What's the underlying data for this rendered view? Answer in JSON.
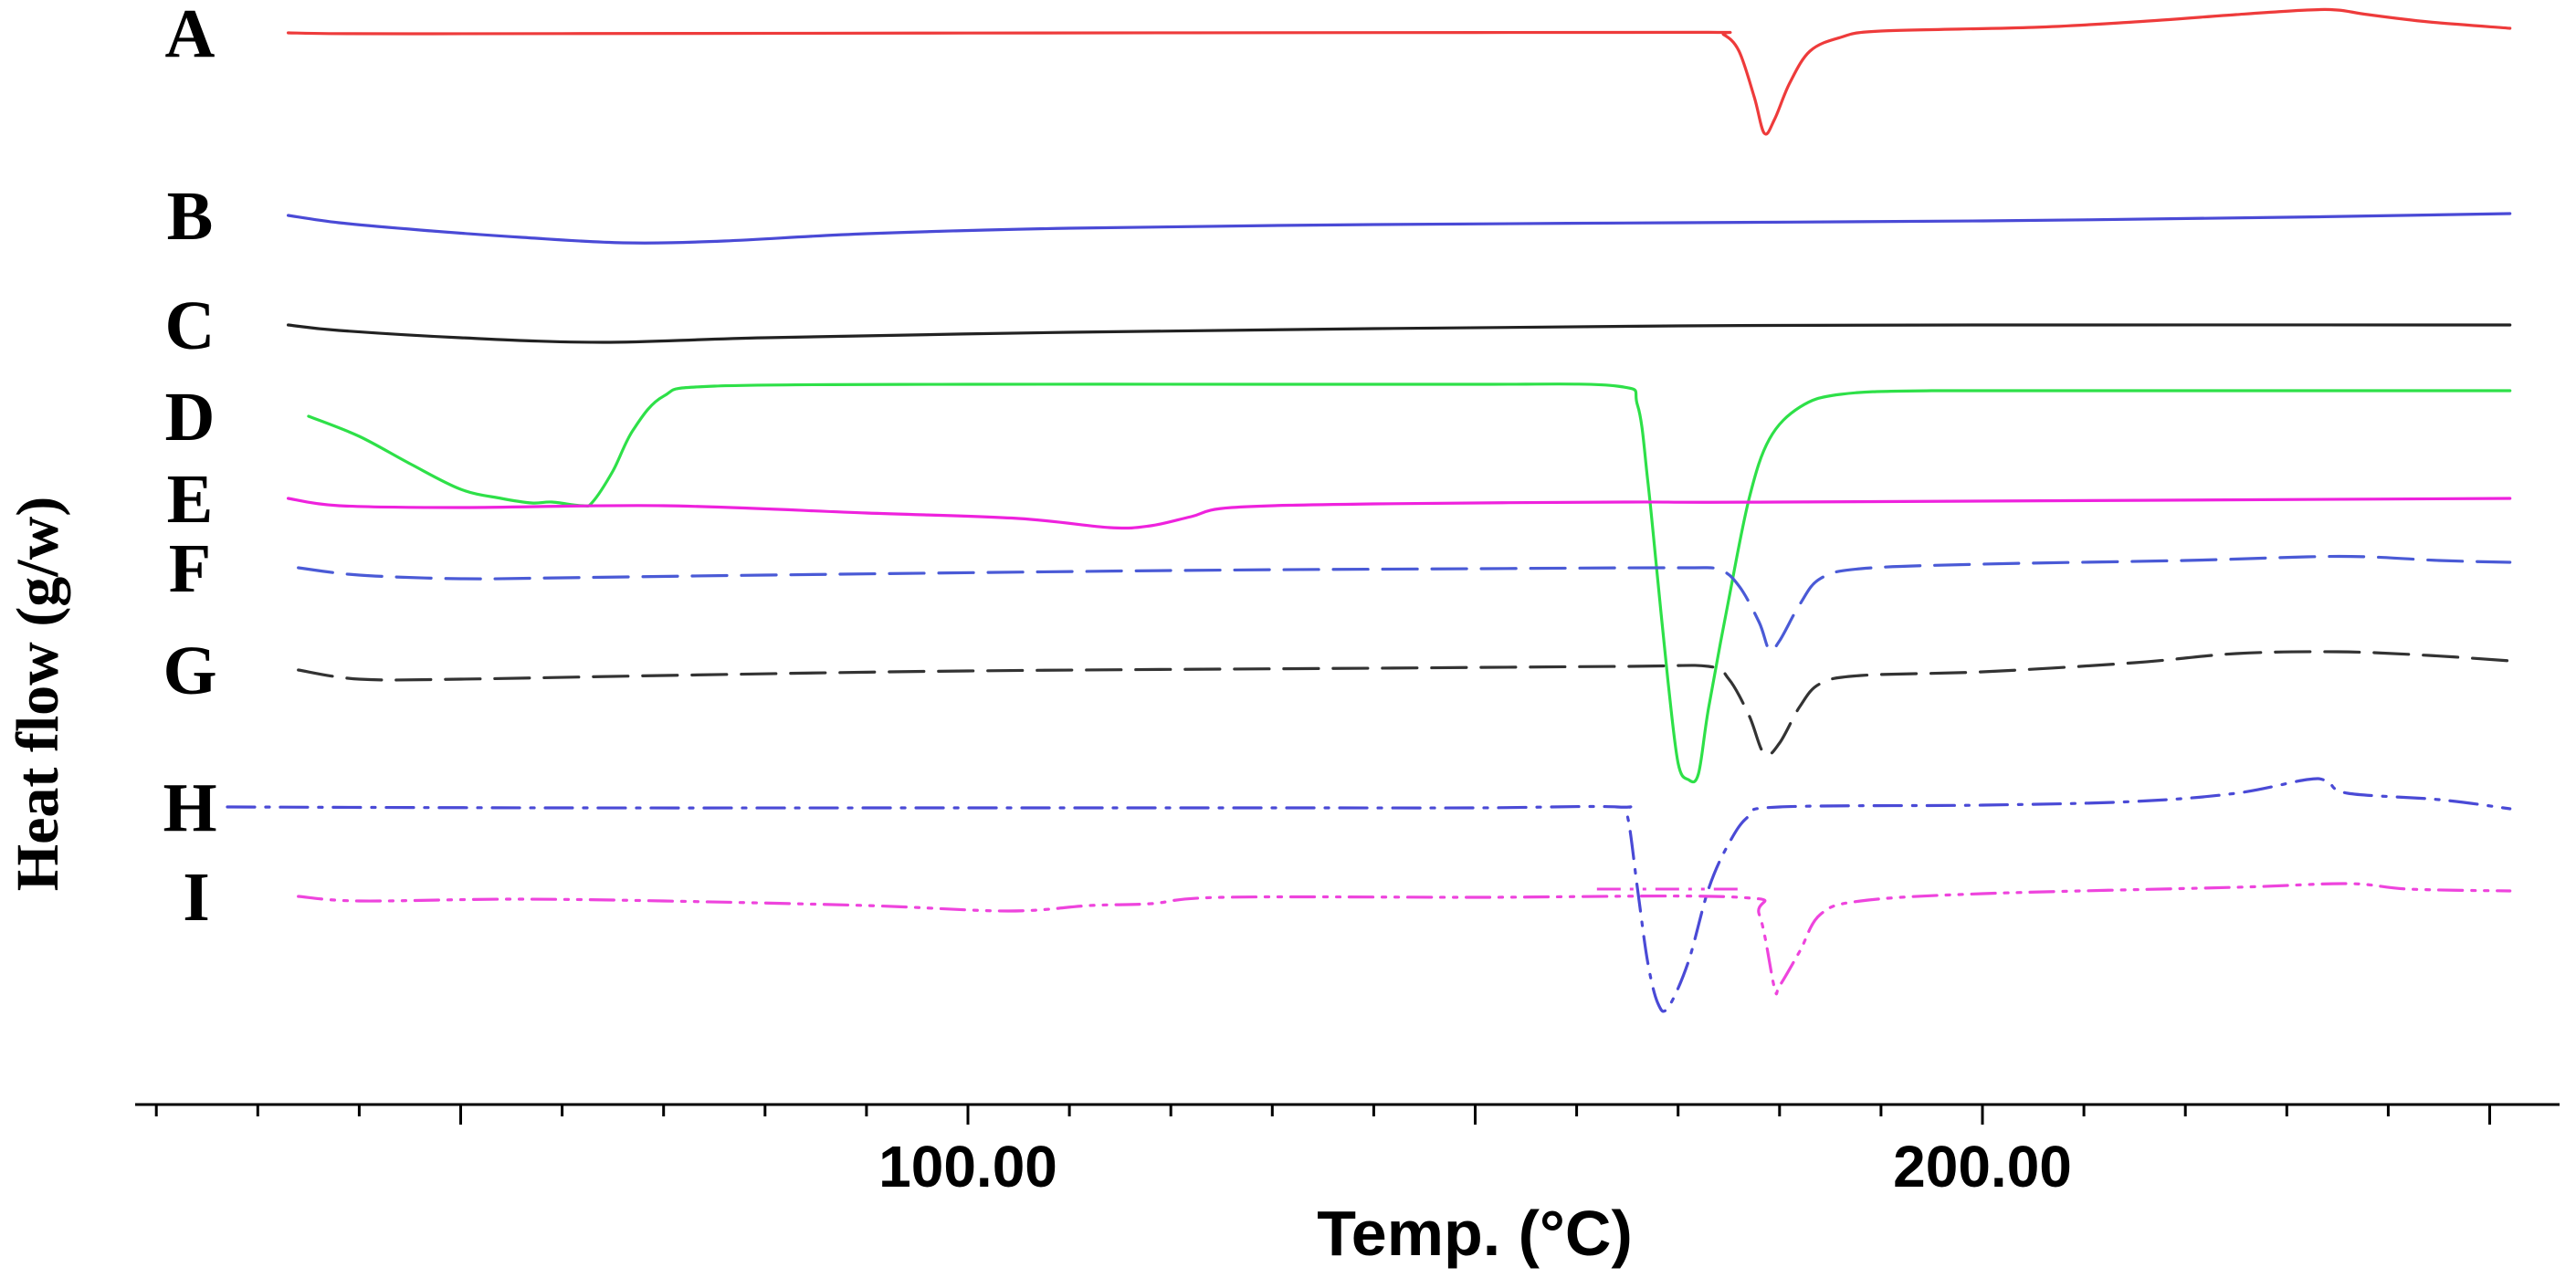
{
  "chart_data": {
    "type": "line",
    "title": "",
    "xlabel": "Temp. (°C)",
    "ylabel": "Heat flow (g/w)",
    "xlim": [
      20,
      260
    ],
    "x_tick_labels": [
      {
        "value": 100,
        "label": "100.00"
      },
      {
        "value": 200,
        "label": "200.00"
      }
    ],
    "minor_tick_step": 10,
    "grid": false,
    "legend": "letters at left of each trace",
    "series": [
      {
        "name": "A",
        "color": "#ee3b3b",
        "dash": "solid",
        "baseline": 3,
        "points": [
          [
            33,
            0
          ],
          [
            37,
            -0.8
          ],
          [
            45,
            -1
          ],
          [
            60,
            -0.8
          ],
          [
            100,
            -0.2
          ],
          [
            150,
            0.4
          ],
          [
            173,
            0.6
          ],
          [
            174.5,
            -2
          ],
          [
            176,
            -20
          ],
          [
            177.5,
            -70
          ],
          [
            178.5,
            -110
          ],
          [
            179.5,
            -95
          ],
          [
            181,
            -55
          ],
          [
            183,
            -20
          ],
          [
            186,
            -5
          ],
          [
            190,
            2
          ],
          [
            205,
            6
          ],
          [
            215,
            12
          ],
          [
            225,
            20
          ],
          [
            232,
            25
          ],
          [
            235,
            25
          ],
          [
            238,
            20
          ],
          [
            244,
            12
          ],
          [
            252,
            5
          ]
        ]
      },
      {
        "name": "B",
        "color": "#4a4ad6",
        "dash": "solid",
        "baseline": 103,
        "points": [
          [
            33,
            0
          ],
          [
            38,
            -8
          ],
          [
            46,
            -16
          ],
          [
            56,
            -24
          ],
          [
            66,
            -30
          ],
          [
            76,
            -28
          ],
          [
            90,
            -20
          ],
          [
            110,
            -14
          ],
          [
            140,
            -10
          ],
          [
            170,
            -8
          ],
          [
            200,
            -6
          ],
          [
            230,
            -2
          ],
          [
            252,
            2
          ]
        ]
      },
      {
        "name": "C",
        "color": "#222222",
        "dash": "solid",
        "baseline": 163,
        "points": [
          [
            33,
            0
          ],
          [
            38,
            -6
          ],
          [
            50,
            -14
          ],
          [
            64,
            -19
          ],
          [
            80,
            -14
          ],
          [
            110,
            -8
          ],
          [
            140,
            -4
          ],
          [
            170,
            -1
          ],
          [
            200,
            0
          ],
          [
            252,
            0
          ]
        ]
      },
      {
        "name": "D",
        "color": "#2ee048",
        "dash": "solid",
        "baseline": 213,
        "points": [
          [
            35,
            0
          ],
          [
            40,
            -22
          ],
          [
            45,
            -52
          ],
          [
            50,
            -80
          ],
          [
            54,
            -90
          ],
          [
            57,
            -95
          ],
          [
            59,
            -94
          ],
          [
            62,
            -98
          ],
          [
            63,
            -94
          ],
          [
            65,
            -60
          ],
          [
            67,
            -15
          ],
          [
            70,
            22
          ],
          [
            75,
            33
          ],
          [
            100,
            35
          ],
          [
            130,
            35
          ],
          [
            150,
            35
          ],
          [
            164,
            33
          ],
          [
            166,
            12
          ],
          [
            167,
            -70
          ],
          [
            168,
            -180
          ],
          [
            169,
            -290
          ],
          [
            170,
            -380
          ],
          [
            171,
            -398
          ],
          [
            172,
            -392
          ],
          [
            173,
            -320
          ],
          [
            175,
            -200
          ],
          [
            177,
            -90
          ],
          [
            179,
            -25
          ],
          [
            182,
            10
          ],
          [
            186,
            24
          ],
          [
            195,
            28
          ],
          [
            220,
            28
          ],
          [
            252,
            28
          ]
        ]
      },
      {
        "name": "E",
        "color": "#ee22dd",
        "dash": "solid",
        "baseline": 258,
        "points": [
          [
            33,
            0
          ],
          [
            38,
            -8
          ],
          [
            50,
            -10
          ],
          [
            70,
            -8
          ],
          [
            90,
            -16
          ],
          [
            105,
            -22
          ],
          [
            114,
            -32
          ],
          [
            118,
            -30
          ],
          [
            122,
            -20
          ],
          [
            126,
            -10
          ],
          [
            140,
            -6
          ],
          [
            165,
            -4
          ],
          [
            180,
            -4
          ],
          [
            252,
            0
          ]
        ]
      },
      {
        "name": "F",
        "color": "#4a5ad6",
        "dash": "dash",
        "baseline": 296,
        "points": [
          [
            34,
            0
          ],
          [
            40,
            -8
          ],
          [
            50,
            -12
          ],
          [
            60,
            -11
          ],
          [
            80,
            -8
          ],
          [
            120,
            -3
          ],
          [
            150,
            -1
          ],
          [
            170,
            0
          ],
          [
            174,
            -2
          ],
          [
            176,
            -20
          ],
          [
            178,
            -60
          ],
          [
            179,
            -90
          ],
          [
            180,
            -80
          ],
          [
            182,
            -40
          ],
          [
            184,
            -12
          ],
          [
            188,
            -1
          ],
          [
            200,
            4
          ],
          [
            220,
            8
          ],
          [
            232,
            12
          ],
          [
            238,
            12
          ],
          [
            245,
            8
          ],
          [
            252,
            6
          ]
        ]
      },
      {
        "name": "G",
        "color": "#333333",
        "dash": "dash",
        "baseline": 352,
        "points": [
          [
            34,
            0
          ],
          [
            40,
            -10
          ],
          [
            50,
            -10
          ],
          [
            70,
            -6
          ],
          [
            100,
            -1
          ],
          [
            140,
            2
          ],
          [
            165,
            4
          ],
          [
            173,
            4
          ],
          [
            175,
            -10
          ],
          [
            177,
            -50
          ],
          [
            178.5,
            -92
          ],
          [
            180,
            -80
          ],
          [
            182,
            -40
          ],
          [
            184,
            -15
          ],
          [
            188,
            -6
          ],
          [
            200,
            -2
          ],
          [
            215,
            8
          ],
          [
            225,
            18
          ],
          [
            235,
            20
          ],
          [
            244,
            16
          ],
          [
            252,
            10
          ]
        ]
      },
      {
        "name": "H",
        "color": "#4a4ad6",
        "dash": "dashdot",
        "baseline": 427,
        "points": [
          [
            27,
            0
          ],
          [
            60,
            -1
          ],
          [
            100,
            -1
          ],
          [
            130,
            -1
          ],
          [
            150,
            -1
          ],
          [
            164,
            0
          ],
          [
            165,
            -10
          ],
          [
            166,
            -90
          ],
          [
            167,
            -170
          ],
          [
            168,
            -215
          ],
          [
            169,
            -220
          ],
          [
            171,
            -170
          ],
          [
            173,
            -90
          ],
          [
            175,
            -40
          ],
          [
            177,
            -10
          ],
          [
            180,
            0
          ],
          [
            200,
            2
          ],
          [
            215,
            6
          ],
          [
            225,
            15
          ],
          [
            232,
            30
          ],
          [
            234,
            28
          ],
          [
            236,
            15
          ],
          [
            245,
            8
          ],
          [
            252,
            -2
          ]
        ]
      },
      {
        "name": "I",
        "color": "#ee44dd",
        "dash": "dashdotdot",
        "baseline": 476,
        "points": [
          [
            34,
            0
          ],
          [
            40,
            -5
          ],
          [
            55,
            -3
          ],
          [
            70,
            -5
          ],
          [
            90,
            -10
          ],
          [
            104,
            -16
          ],
          [
            112,
            -10
          ],
          [
            118,
            -8
          ],
          [
            125,
            -1
          ],
          [
            150,
            -1
          ],
          [
            176,
            -1
          ],
          [
            178,
            -20
          ],
          [
            179.5,
            -100
          ],
          [
            180,
            -98
          ],
          [
            182,
            -60
          ],
          [
            184,
            -20
          ],
          [
            188,
            -5
          ],
          [
            200,
            3
          ],
          [
            225,
            10
          ],
          [
            236,
            14
          ],
          [
            242,
            8
          ],
          [
            252,
            6
          ]
        ]
      }
    ],
    "extra_line": {
      "name": "I-plateau",
      "color": "#ee44dd",
      "dash": "dashdotdot",
      "y_offset_on_I": 8,
      "from_x": 162,
      "to_x": 176
    }
  }
}
